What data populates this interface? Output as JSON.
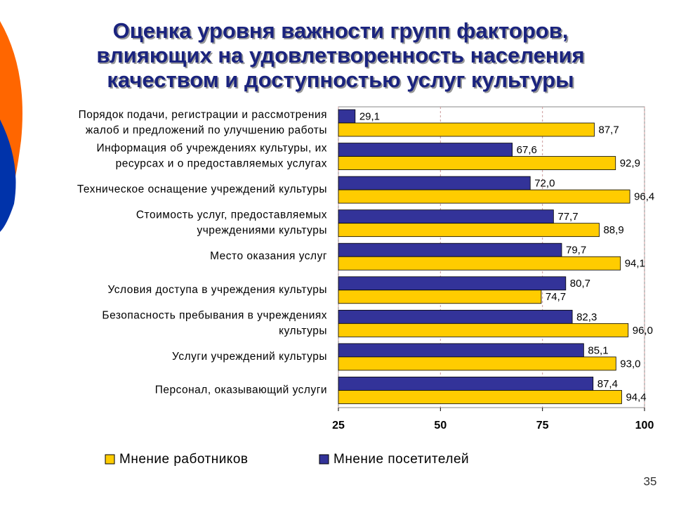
{
  "chart_data": {
    "type": "barh",
    "title": [
      "Оценка уровня важности групп факторов,",
      "влияющих на удовлетворенность населения",
      "качеством и доступностью услуг культуры"
    ],
    "categories": [
      [
        "Порядок подачи, регистрации и рассмотрения",
        "жалоб и предложений по улучшению работы"
      ],
      [
        "Информация об учреждениях культуры, их",
        "ресурсах и о предоставляемых услугах"
      ],
      [
        "Техническое оснащение учреждений культуры"
      ],
      [
        "Стоимость услуг, предоставляемых",
        "учреждениями культуры"
      ],
      [
        "Место оказания услуг"
      ],
      [
        "Условия доступа в учреждения культуры"
      ],
      [
        "Безопасность пребывания в учреждениях",
        "культуры"
      ],
      [
        "Услуги учреждений культуры"
      ],
      [
        "Персонал, оказывающий услуги"
      ]
    ],
    "series": [
      {
        "name": "Мнение работников",
        "color": "#ffcc00",
        "values": [
          87.7,
          92.9,
          96.4,
          88.9,
          94.1,
          74.7,
          96.0,
          93.0,
          94.4
        ],
        "value_labels": [
          "87,7",
          "92,9",
          "96,4",
          "88,9",
          "94,1",
          "74,7",
          "96,0",
          "93,0",
          "94,4"
        ]
      },
      {
        "name": "Мнение посетителей",
        "color": "#333399",
        "values": [
          29.1,
          67.6,
          72.0,
          77.7,
          79.7,
          80.7,
          82.3,
          85.1,
          87.4
        ],
        "value_labels": [
          "29,1",
          "67,6",
          "72,0",
          "77,7",
          "79,7",
          "80,7",
          "82,3",
          "85,1",
          "87,4"
        ]
      }
    ],
    "xlim": [
      25,
      100
    ],
    "xticks": [
      25,
      50,
      75,
      100
    ],
    "grid": true,
    "page_number": "35"
  }
}
